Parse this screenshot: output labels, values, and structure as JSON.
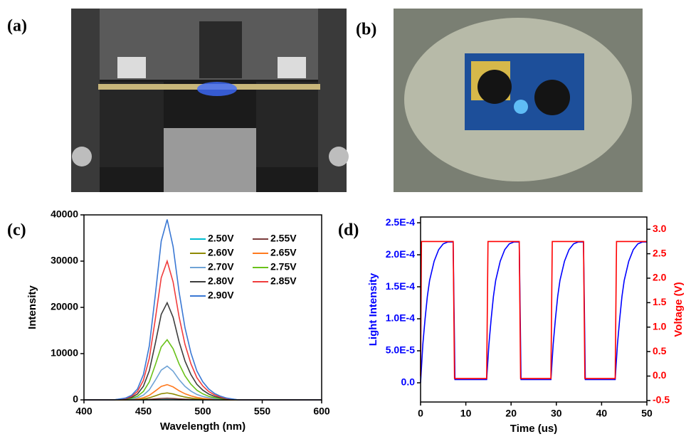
{
  "figure": {
    "panel_labels": [
      "(a)",
      "(b)",
      "(c)",
      "(d)"
    ]
  },
  "chart_data": [
    {
      "type": "line",
      "xlabel": "Wavelength (nm)",
      "ylabel": "Intensity",
      "xlim": [
        400,
        600
      ],
      "xticks": [
        400,
        450,
        500,
        550,
        600
      ],
      "ylim": [
        0,
        40000
      ],
      "yticks": [
        0,
        10000,
        20000,
        30000,
        40000
      ],
      "legend": "upper right",
      "x": [
        400,
        420,
        425,
        430,
        435,
        440,
        445,
        450,
        455,
        460,
        465,
        470,
        475,
        480,
        485,
        490,
        495,
        500,
        505,
        510,
        515,
        520,
        525,
        530,
        535,
        540,
        600
      ],
      "series": [
        {
          "name": "2.50V",
          "color": "#00bcd0",
          "values": [
            0,
            0,
            0,
            0,
            1,
            2,
            4,
            8,
            18,
            35,
            53,
            60,
            51,
            36,
            24,
            16,
            10,
            6,
            4,
            2,
            1,
            1,
            0,
            0,
            0,
            0,
            0
          ]
        },
        {
          "name": "2.55V",
          "color": "#7a3b3b",
          "values": [
            0,
            0,
            0,
            2,
            4,
            9,
            21,
            49,
            105,
            203,
            308,
            350,
            298,
            210,
            140,
            91,
            56,
            35,
            21,
            12,
            7,
            4,
            2,
            0,
            0,
            0,
            0
          ]
        },
        {
          "name": "2.60V",
          "color": "#8f8a00",
          "values": [
            0,
            0,
            0,
            8,
            15,
            38,
            90,
            210,
            450,
            870,
            1320,
            1500,
            1275,
            900,
            600,
            390,
            240,
            150,
            90,
            53,
            30,
            15,
            8,
            0,
            0,
            0,
            0
          ]
        },
        {
          "name": "2.65V",
          "color": "#ff7a1f",
          "values": [
            0,
            0,
            0,
            17,
            33,
            83,
            198,
            462,
            990,
            1914,
            2904,
            3300,
            2805,
            1980,
            1320,
            858,
            528,
            330,
            198,
            116,
            66,
            33,
            17,
            0,
            0,
            0,
            0
          ]
        },
        {
          "name": "2.70V",
          "color": "#6fa3d6",
          "values": [
            0,
            0,
            0,
            37,
            73,
            183,
            438,
            1022,
            2190,
            4234,
            6424,
            7300,
            6205,
            4380,
            2920,
            1898,
            1168,
            730,
            438,
            256,
            146,
            73,
            37,
            0,
            0,
            0,
            0
          ]
        },
        {
          "name": "2.75V",
          "color": "#6ac21a",
          "values": [
            0,
            0,
            0,
            65,
            130,
            325,
            780,
            1820,
            3900,
            7540,
            11440,
            13000,
            11050,
            7800,
            5200,
            3380,
            2080,
            1300,
            780,
            455,
            260,
            130,
            65,
            0,
            0,
            0,
            0
          ]
        },
        {
          "name": "2.80V",
          "color": "#3d3d3d",
          "values": [
            0,
            0,
            0,
            105,
            210,
            525,
            1260,
            2940,
            6300,
            12180,
            18480,
            21000,
            17850,
            12600,
            8400,
            5460,
            3360,
            2100,
            1260,
            735,
            420,
            210,
            105,
            0,
            0,
            0,
            0
          ]
        },
        {
          "name": "2.85V",
          "color": "#f03c3c",
          "values": [
            0,
            0,
            0,
            150,
            300,
            750,
            1800,
            4200,
            9000,
            17400,
            26400,
            30000,
            25500,
            18000,
            12000,
            7800,
            4800,
            3000,
            1800,
            1050,
            600,
            300,
            150,
            0,
            0,
            0,
            0
          ]
        },
        {
          "name": "2.90V",
          "color": "#3a78d4",
          "values": [
            0,
            0,
            0,
            195,
            390,
            975,
            2340,
            5460,
            11700,
            22620,
            34320,
            39000,
            33150,
            23400,
            15600,
            10140,
            6240,
            3900,
            2340,
            1365,
            780,
            390,
            195,
            0,
            0,
            0,
            0
          ]
        }
      ]
    },
    {
      "type": "line",
      "xlabel": "Time (us)",
      "ylabel": "Light Intensity",
      "y2label": "Voltage (V)",
      "axis_colors": {
        "y": "#0000ff",
        "y2": "#ff0000"
      },
      "xlim": [
        0,
        50
      ],
      "xticks": [
        0,
        10,
        20,
        30,
        40,
        50
      ],
      "ylim": [
        -3e-05,
        0.000259
      ],
      "yticks": [
        {
          "value": 0,
          "label": "0.0"
        },
        {
          "value": 5e-05,
          "label": "5.0E-5"
        },
        {
          "value": 0.0001,
          "label": "1.0E-4"
        },
        {
          "value": 0.00015,
          "label": "1.5E-4"
        },
        {
          "value": 0.0002,
          "label": "2.0E-4"
        },
        {
          "value": 0.00025,
          "label": "2.5E-4"
        }
      ],
      "y2lim": [
        -0.53,
        3.25
      ],
      "y2ticks": [
        -0.5,
        {
          "value": 0,
          "label": "0.0"
        },
        0.5,
        {
          "value": 1,
          "label": "1.0"
        },
        1.5,
        {
          "value": 2,
          "label": "2.0"
        },
        2.5,
        {
          "value": 3,
          "label": "3.0"
        }
      ],
      "series": [
        {
          "color": "#0000ff",
          "x": [
            0,
            0.5,
            1,
            1.5,
            2,
            3,
            4,
            5,
            6,
            7.2,
            7.6,
            14.6,
            15.1,
            15.6,
            16.1,
            16.6,
            17.6,
            18.6,
            19.6,
            20.6,
            21.8,
            22.2,
            28.8,
            29.3,
            29.8,
            30.3,
            30.8,
            31.8,
            32.8,
            33.8,
            34.8,
            36,
            36.4,
            43,
            43.5,
            44,
            44.5,
            45,
            46,
            47,
            48,
            49,
            50
          ],
          "values": [
            0,
            6e-05,
            0.0001,
            0.000135,
            0.00016,
            0.00019,
            0.000208,
            0.000217,
            0.00022,
            0.00022,
            5e-06,
            5e-06,
            6e-05,
            0.0001,
            0.000135,
            0.00016,
            0.00019,
            0.000208,
            0.000217,
            0.00022,
            0.00022,
            5e-06,
            5e-06,
            6e-05,
            0.0001,
            0.000135,
            0.00016,
            0.00019,
            0.000208,
            0.000217,
            0.00022,
            0.00022,
            5e-06,
            5e-06,
            6e-05,
            0.0001,
            0.000135,
            0.00016,
            0.00019,
            0.000208,
            0.000217,
            0.00022,
            0.00022
          ]
        },
        {
          "color": "#ff0000",
          "axis": "y2",
          "x": [
            0,
            0.2,
            7.2,
            7.5,
            14.6,
            14.9,
            21.8,
            22.1,
            28.8,
            29.1,
            36,
            36.3,
            43,
            43.3,
            50
          ],
          "values": [
            0,
            2.75,
            2.75,
            -0.05,
            -0.05,
            2.75,
            2.75,
            -0.05,
            -0.05,
            2.75,
            2.75,
            -0.05,
            -0.05,
            2.75,
            2.75
          ]
        }
      ]
    }
  ]
}
